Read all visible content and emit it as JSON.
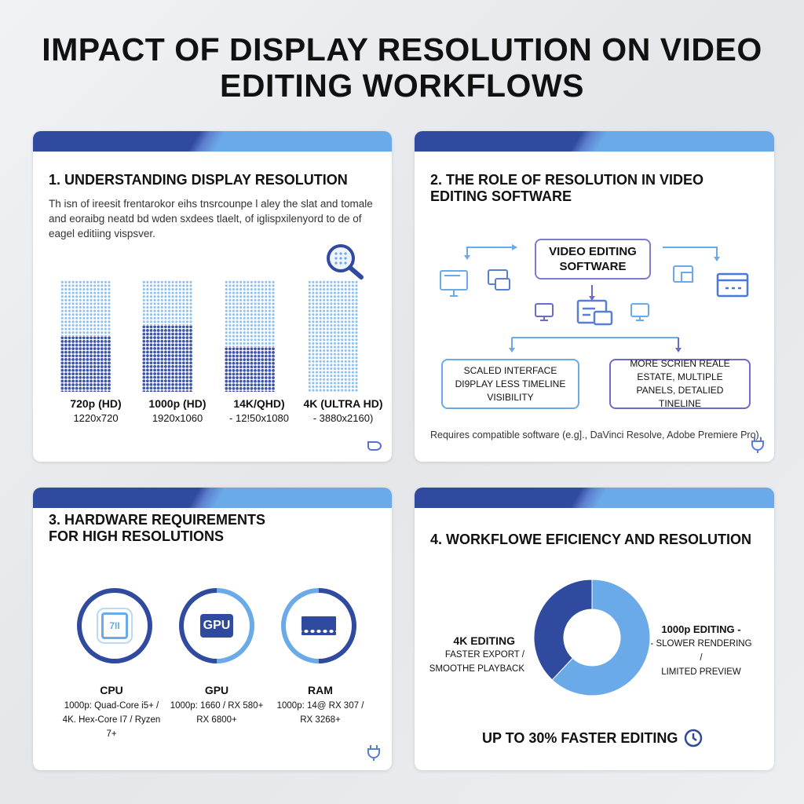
{
  "title": "IMPACT OF DISPLAY RESOLUTION ON VIDEO EDITING WORKFLOWS",
  "colors": {
    "dark_blue": "#2f4a9e",
    "light_blue": "#6aaae8",
    "purple": "#6b6bc8"
  },
  "section1": {
    "title": "1. UNDERSTANDING DISPLAY RESOLUTION",
    "body": "Th isn of ireesit frentarokor eihs tnsrcounpe l aley the slat and tomale and eoraibg neatd bd wden sxdees tlaelt, of iglispxilenyord to de of eagel editiing vispsver.",
    "resolutions": [
      {
        "name": "720p (HD)",
        "pixels": "1220x720",
        "dark_fill": 0.5
      },
      {
        "name": "1000p (HD)",
        "pixels": "1920x1060",
        "dark_fill": 0.6
      },
      {
        "name": "14K/QHD)",
        "pixels": "- 12!50x1080",
        "dark_fill": 0.4
      },
      {
        "name": "4K (ULTRA HD)",
        "pixels": "- 3880x2160)",
        "dark_fill": 0
      }
    ],
    "icons": [
      "magnifier-icon",
      "tag-icon"
    ]
  },
  "section2": {
    "title": "2. THE ROLE OF RESOLUTION IN VIDEO EDITING SOFTWARE",
    "center": "VIDEO EDITING SOFTWARE",
    "left_box": "SCALED INTERFACE DI9PLAY LESS TIMELINE VISIBILITY",
    "right_box": "MORE SCRIEN REALE ESTATE, MULTIPLE PANELS, DETALIED TINELINE",
    "note": "Requires compatible software (e.g]., DaVinci Resolve, Adobe Premiere Pro)."
  },
  "section3": {
    "title": "3. HARDWARE REQUIREMENTS FOR HIGH RESOLUTIONS",
    "items": [
      {
        "name": "CPU",
        "chip_label": "7II",
        "line1": "1000p: Quad-Core i5+ /",
        "line2": "4K. Hex-Core I7 / Ryzen 7+"
      },
      {
        "name": "GPU",
        "chip_label": "GPU",
        "line1": "1000p: 1660 / RX 580+",
        "line2": "RX 6800+"
      },
      {
        "name": "RAM",
        "line1": "1000p: 14@ RX 307 /",
        "line2": "RX 3268+"
      }
    ]
  },
  "section4": {
    "title": "4. WORKFLOWE EFICIENCY AND RESOLUTION",
    "left_label": {
      "title": "4K EDITING",
      "line1": "FASTER EXPORT /",
      "line2": "SMOOTHE PLAYBACK"
    },
    "right_label": {
      "title": "1000p EDITING -",
      "line1": "- SLOWER RENDERING /",
      "line2": "LIMITED PREVIEW"
    },
    "chart_data": {
      "type": "pie",
      "donut": true,
      "slices": [
        {
          "label": "4K EDITING",
          "value": 38,
          "color": "#2f4a9e"
        },
        {
          "label": "1000p EDITING",
          "value": 62,
          "color": "#6aaae8"
        }
      ]
    },
    "footer": "UP TO 30% FASTER EDITING"
  }
}
